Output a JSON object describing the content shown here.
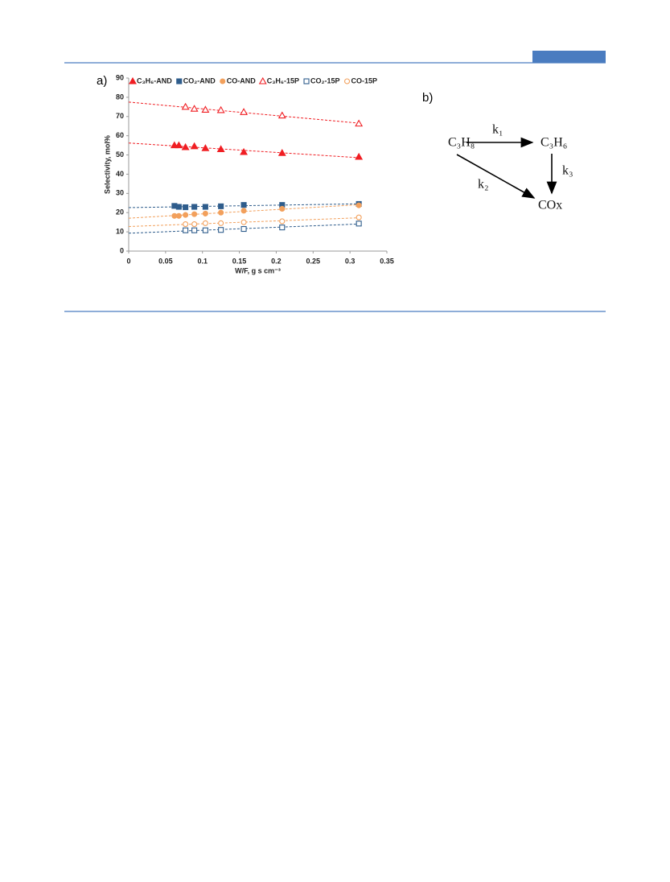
{
  "panel_labels": [
    "a)",
    "b)"
  ],
  "chart_data": {
    "type": "scatter",
    "xlabel": "W/F, g s cm⁻³",
    "ylabel": "Selectivity, mol%",
    "xlim": [
      0,
      0.35
    ],
    "xticks": [
      0,
      0.05,
      0.1,
      0.15,
      0.2,
      0.25,
      0.3,
      0.35
    ],
    "ylim": [
      0,
      90
    ],
    "yticks": [
      0,
      10,
      20,
      30,
      40,
      50,
      60,
      70,
      80,
      90
    ],
    "trendlines": true,
    "legend": "top",
    "series": [
      {
        "name": "C₃H₆-AND",
        "color": "#f01e23",
        "marker": "triangle",
        "filled": true,
        "x": [
          0.062,
          0.068,
          0.077,
          0.089,
          0.104,
          0.125,
          0.156,
          0.208,
          0.312
        ],
        "values": [
          55,
          55,
          54,
          54.5,
          53.5,
          53,
          51.5,
          51,
          49
        ]
      },
      {
        "name": "CO₂-AND",
        "color": "#2f5d8c",
        "marker": "square",
        "filled": true,
        "x": [
          0.062,
          0.068,
          0.077,
          0.089,
          0.104,
          0.125,
          0.156,
          0.208,
          0.312
        ],
        "values": [
          23.5,
          23,
          22.8,
          23,
          23,
          23.3,
          24,
          24,
          24.5
        ]
      },
      {
        "name": "CO-AND",
        "color": "#f2a05c",
        "marker": "circle",
        "filled": true,
        "x": [
          0.062,
          0.068,
          0.077,
          0.089,
          0.104,
          0.125,
          0.156,
          0.208,
          0.312
        ],
        "values": [
          18.3,
          18.3,
          18.8,
          19.2,
          19.5,
          20,
          21,
          22,
          23.8
        ]
      },
      {
        "name": "C₃H₆-15P",
        "color": "#f01e23",
        "marker": "triangle",
        "filled": false,
        "x": [
          0.077,
          0.089,
          0.104,
          0.125,
          0.156,
          0.208,
          0.312
        ],
        "values": [
          75,
          74,
          73.5,
          73.3,
          72.3,
          70.5,
          66.3
        ]
      },
      {
        "name": "CO₂-15P",
        "color": "#2f5d8c",
        "marker": "square",
        "filled": false,
        "x": [
          0.077,
          0.089,
          0.104,
          0.125,
          0.156,
          0.208,
          0.312
        ],
        "values": [
          10.8,
          10.8,
          10.8,
          11,
          11.5,
          12.3,
          14.3
        ]
      },
      {
        "name": "CO-15P",
        "color": "#f2a05c",
        "marker": "circle",
        "filled": false,
        "x": [
          0.077,
          0.089,
          0.104,
          0.125,
          0.156,
          0.208,
          0.312
        ],
        "values": [
          14,
          14,
          14.5,
          14.5,
          15,
          15.5,
          17.5
        ]
      }
    ]
  },
  "diagram": {
    "nodes": [
      {
        "label": "C₃H₈"
      },
      {
        "label": "C₃H₆"
      },
      {
        "label": "COx"
      }
    ],
    "edges": [
      {
        "label": "k₁"
      },
      {
        "label": "k₂"
      },
      {
        "label": "k₃"
      }
    ]
  }
}
